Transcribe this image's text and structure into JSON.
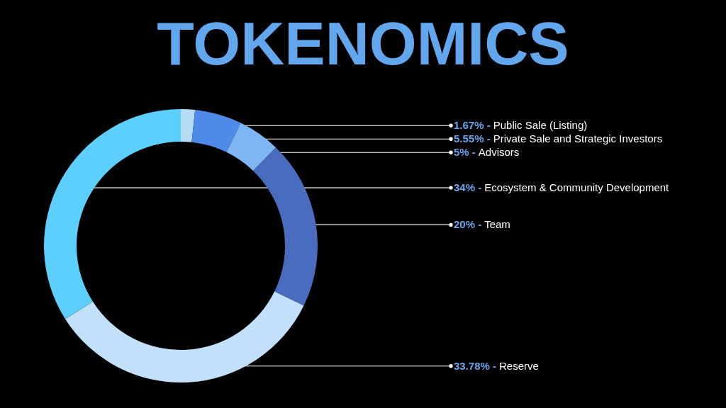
{
  "chart_data": {
    "type": "donut",
    "title": "TOKENOMICS",
    "categories": [
      "Public Sale (Listing)",
      "Private Sale and Strategic Investors",
      "Advisors",
      "Team",
      "Reserve",
      "Ecosystem & Community Development"
    ],
    "values": [
      1.67,
      5.55,
      5,
      20,
      33.78,
      34
    ],
    "value_labels": [
      "1.67% -",
      "5.55% -",
      "5% -",
      "20% -",
      "33.78% -",
      "34% -"
    ],
    "colors": [
      "#b6dcf6",
      "#4f8ae8",
      "#7db6f2",
      "#4a6cbe",
      "#c2e0fa",
      "#5ccffd"
    ]
  }
}
